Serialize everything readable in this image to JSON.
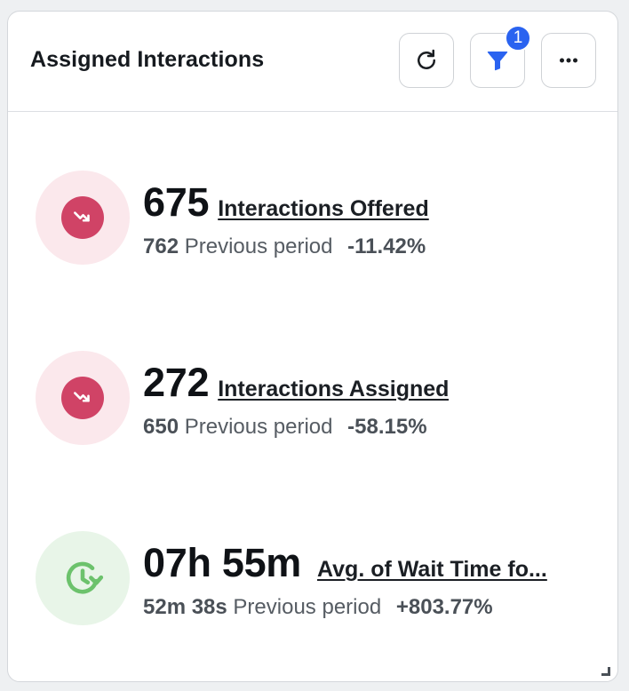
{
  "header": {
    "title": "Assigned Interactions",
    "refresh_icon": "refresh-icon",
    "filter_icon": "filter-icon",
    "filter_badge": "1",
    "more_icon": "more-horizontal-icon"
  },
  "metrics": [
    {
      "value": "675",
      "label": "Interactions Offered",
      "previous_value": "762",
      "previous_label": "Previous period",
      "change": "-11.42%",
      "icon": "trend-down-icon",
      "icon_color": "#d04366"
    },
    {
      "value": "272",
      "label": "Interactions Assigned",
      "previous_value": "650",
      "previous_label": "Previous period",
      "change": "-58.15%",
      "icon": "trend-down-icon",
      "icon_color": "#d04366"
    },
    {
      "value": "07h 55m",
      "label": "Avg. of Wait Time fo...",
      "previous_value": "52m 38s",
      "previous_label": "Previous period",
      "change": "+803.77%",
      "icon": "clock-refresh-icon",
      "icon_color": "#6cc26c"
    }
  ],
  "colors": {
    "badge": "#2a63f0",
    "negative_bg": "#fbe8ec",
    "positive_bg": "#e8f5e8"
  }
}
